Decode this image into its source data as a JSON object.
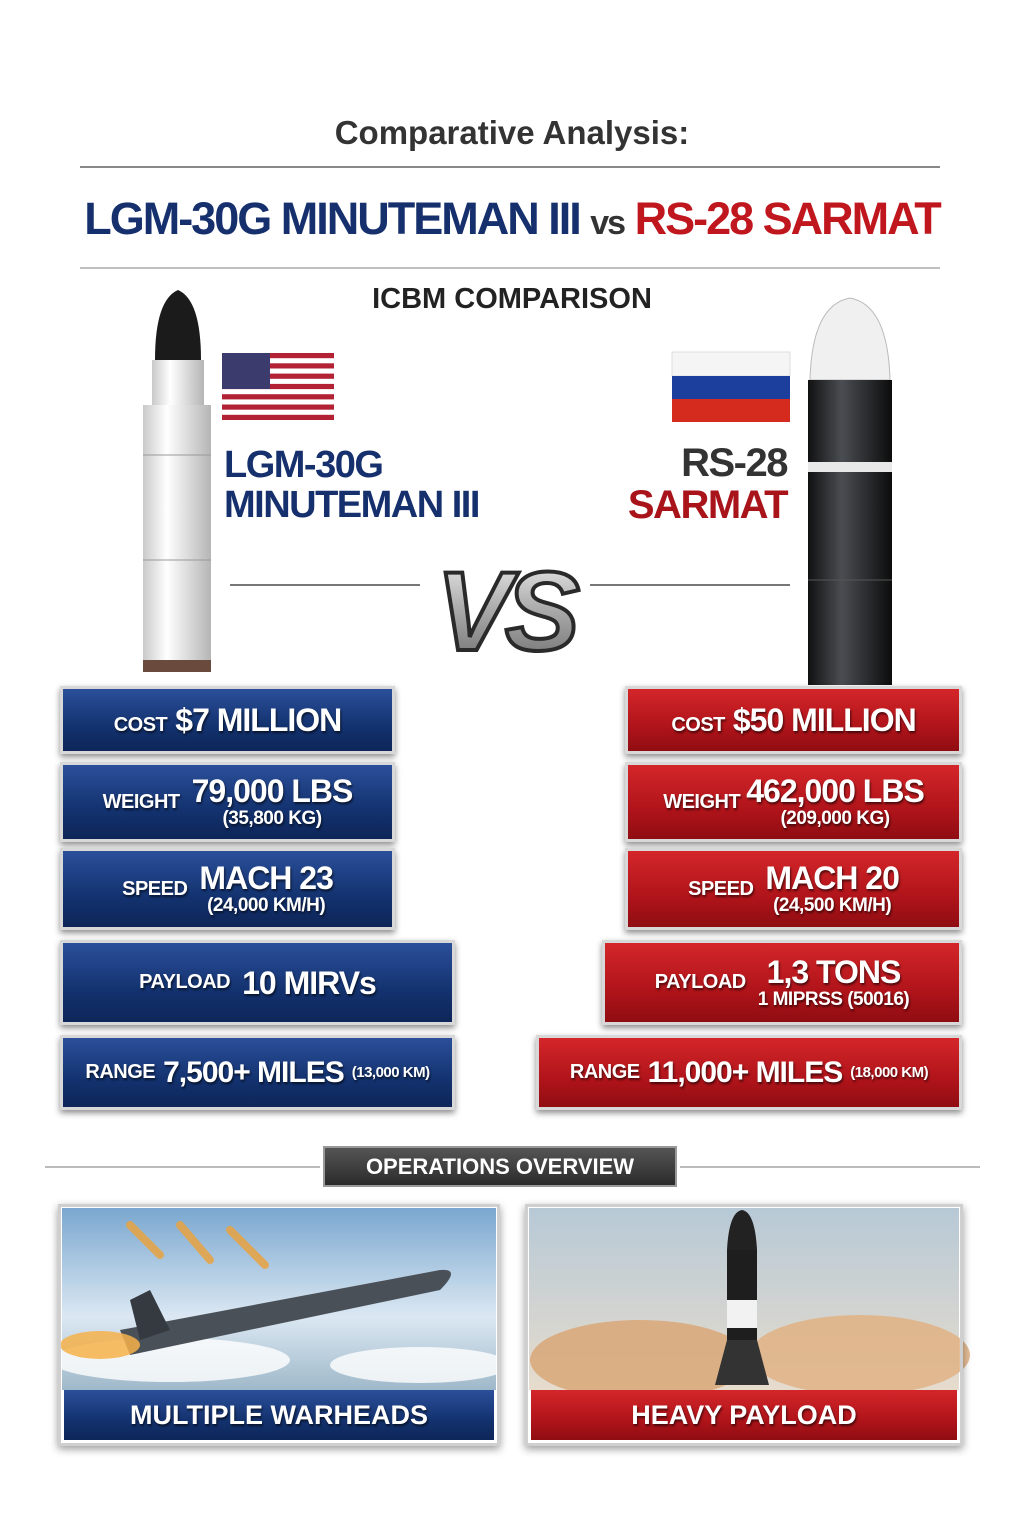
{
  "header": {
    "kicker": "Comparative Analysis:",
    "left": "LGM-30G MINUTEMAN III",
    "vs": "vs",
    "right": "RS-28 SARMAT",
    "subtitle": "ICBM COMPARISON"
  },
  "left": {
    "name": [
      "LGM-30G",
      "MINUTEMAN III"
    ],
    "stats": [
      {
        "label": "COST",
        "value": "$7 MILLION"
      },
      {
        "label": "WEIGHT",
        "value": "79,000 LBS",
        "sub": "(35,800 KG)"
      },
      {
        "label": "SPEED",
        "value": "MACH 23",
        "sub": "(24,000 KM/H)"
      },
      {
        "label": "PAYLOAD",
        "value": "10 MIRVs"
      },
      {
        "label": "RANGE",
        "value": "7,500+ MILES",
        "sub": "(13,000 KM)"
      }
    ]
  },
  "versus": "VS",
  "right": {
    "name": [
      "RS-28",
      "SARMAT"
    ],
    "stats": [
      {
        "label": "COST",
        "value": "$50 MILLION"
      },
      {
        "label": "WEIGHT",
        "value": "462,000 LBS",
        "sub": "(209,000 KG)"
      },
      {
        "label": "SPEED",
        "value": "MACH 20",
        "sub": "(24,500 KM/H)"
      },
      {
        "label": "PAYLOAD",
        "value": "1,3 TONS",
        "sub": "1 MIPRSS (50016)"
      },
      {
        "label": "RANGE",
        "value": "11,000+ MILES",
        "sub": "(18,000 KM)"
      }
    ]
  },
  "operations": {
    "title": "OPERATIONS OVERVIEW",
    "panels": [
      "MULTIPLE WARHEADS",
      "HEAVY PAYLOAD"
    ]
  }
}
